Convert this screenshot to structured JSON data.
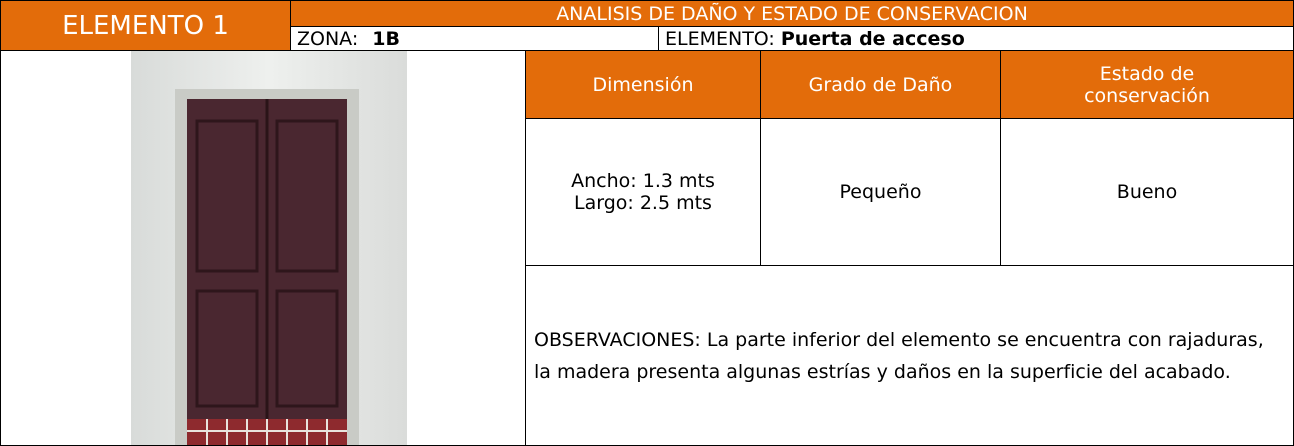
{
  "header": {
    "element": "ELEMENTO 1",
    "title": "ANALISIS DE DAÑO Y ESTADO DE CONSERVACION",
    "zona_label": "ZONA:",
    "zona": "1B",
    "elemento_label": "ELEMENTO:",
    "elemento": "Puerta de acceso"
  },
  "table": {
    "headers": [
      "Dimensión",
      "Grado de Daño",
      "Estado de conservación"
    ],
    "rows": [
      [
        [
          "Ancho: 1.3 mts",
          "Largo: 2.5 mts"
        ],
        "Pequeño",
        "Bueno"
      ]
    ]
  },
  "observations": "OBSERVACIONES: La parte inferior del elemento se encuentra con rajaduras, la madera presenta algunas estrías y daños en la superficie del acabado."
}
